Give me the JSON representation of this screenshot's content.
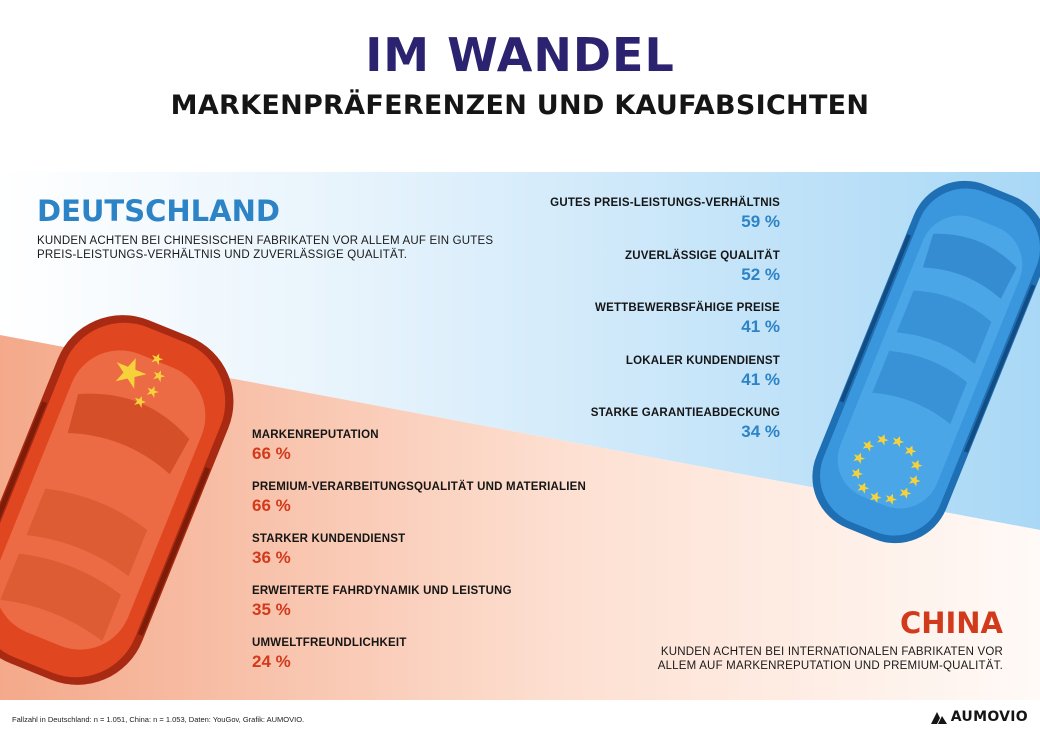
{
  "title": "IM WANDEL",
  "subtitle": "MARKENPRÄFERENZEN UND KAUFABSICHTEN",
  "germany": {
    "heading": "DEUTSCHLAND",
    "description": "KUNDEN ACHTEN BEI CHINESISCHEN FABRIKATEN VOR ALLEM AUF EIN GUTES PREIS-LEISTUNGS-VERHÄLTNIS UND ZUVERLÄSSIGE QUALITÄT.",
    "accent_color": "#2c83c6"
  },
  "china": {
    "heading": "CHINA",
    "description": "KUNDEN ACHTEN BEI INTERNATIONALEN FABRIKATEN VOR ALLEM AUF MARKENREPUTATION UND PREMIUM-QUALITÄT.",
    "accent_color": "#d23a1c"
  },
  "chart_data": [
    {
      "type": "table",
      "title": "DEUTSCHLAND",
      "series_name": "Deutschland",
      "categories": [
        "GUTES PREIS-LEISTUNGS-VERHÄLTNIS",
        "ZUVERLÄSSIGE QUALITÄT",
        "WETTBEWERBSFÄHIGE PREISE",
        "LOKALER KUNDENDIENST",
        "STARKE GARANTIEABDECKUNG"
      ],
      "values": [
        59,
        52,
        41,
        41,
        34
      ],
      "value_labels": [
        "59 %",
        "52 %",
        "41 %",
        "41 %",
        "34 %"
      ],
      "unit": "%"
    },
    {
      "type": "table",
      "title": "CHINA",
      "series_name": "China",
      "categories": [
        "MARKENREPUTATION",
        "PREMIUM-VERARBEITUNGSQUALITÄT UND MATERIALIEN",
        "STARKER KUNDENDIENST",
        "ERWEITERTE FAHRDYNAMIK  UND LEISTUNG",
        "UMWELTFREUNDLICHKEIT"
      ],
      "values": [
        66,
        66,
        36,
        35,
        24
      ],
      "value_labels": [
        "66 %",
        "66 %",
        "36 %",
        "35 %",
        "24 %"
      ],
      "unit": "%"
    }
  ],
  "footer": {
    "source": "Fallzahl in Deutschland: n = 1.051, China: n = 1.053, Daten: YouGov, Grafik: AUMOVIO.",
    "brand": "AUMOVIO"
  },
  "icons": {
    "red_car": "car-china-flag-icon",
    "blue_car": "car-eu-flag-icon",
    "logo": "aumovio-logo-icon"
  }
}
